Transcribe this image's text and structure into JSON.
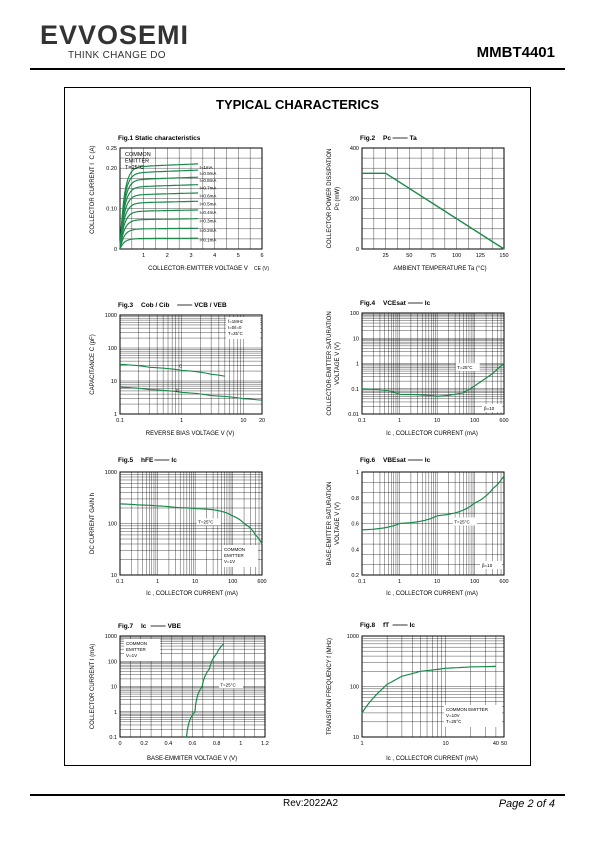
{
  "header": {
    "brand": "EVVOSEMI",
    "tagline": "THINK CHANGE DO",
    "part": "MMBT4401"
  },
  "page_title": "TYPICAL CHARACTERICS",
  "footer": {
    "revision": "Rev:2022A2",
    "page": "Page 2 of 4"
  },
  "colors": {
    "curve": "#1a8a4a",
    "grid": "#000000"
  },
  "chart_data": [
    {
      "id": "fig1",
      "type": "line",
      "title": "Fig.1  Static characteristics",
      "xlabel": "COLLECTOR-EMITTER VOLTAGE V",
      "xlabel_sub": "CE",
      "xlabel_unit": "(V)",
      "ylabel": "COLLECTOR CURRENT I",
      "ylabel_sub": "C",
      "ylabel_unit": "(A)",
      "xlim": [
        0,
        6
      ],
      "ylim": [
        0,
        0.25
      ],
      "xticks": [
        "1",
        "2",
        "3",
        "4",
        "5",
        "6"
      ],
      "yticks": [
        "0",
        "0.10",
        "0.20",
        "0.25"
      ],
      "annotation": [
        "COMMON",
        "EMITTER",
        "T=25°C"
      ],
      "series": [
        {
          "name": "I=1mA",
          "plateau": 0.205
        },
        {
          "name": "I=0.9mA",
          "plateau": 0.19
        },
        {
          "name": "I=0.8mA",
          "plateau": 0.173
        },
        {
          "name": "I=0.7mA",
          "plateau": 0.155
        },
        {
          "name": "I=0.6mA",
          "plateau": 0.135
        },
        {
          "name": "I=0.5mA",
          "plateau": 0.115
        },
        {
          "name": "I=0.4mA",
          "plateau": 0.094
        },
        {
          "name": "I=0.3mA",
          "plateau": 0.073
        },
        {
          "name": "I=0.2mA",
          "plateau": 0.05
        },
        {
          "name": "I=0.1mA",
          "plateau": 0.026
        }
      ]
    },
    {
      "id": "fig2",
      "type": "line",
      "title": "Fig.2",
      "title_sym": "Pc",
      "title_sym2": "Ta",
      "xlabel": "AMBIENT TEMPERATURE Ta (°C)",
      "ylabel": "COLLECTOR POWER DISSIPATION",
      "ylabel2": "Pc (mW)",
      "xlim": [
        0,
        150
      ],
      "ylim": [
        0,
        400
      ],
      "xticks": [
        "25",
        "50",
        "75",
        "100",
        "125",
        "150"
      ],
      "yticks": [
        "0",
        "200",
        "400"
      ],
      "x": [
        0,
        25,
        150
      ],
      "y": [
        300,
        300,
        0
      ]
    },
    {
      "id": "fig3",
      "type": "line",
      "title": "Fig.3",
      "title_sym": "Cob / Cib",
      "title_sym2": "VCB / VEB",
      "xlabel": "REVERSE BIAS VOLTAGE V (V)",
      "ylabel": "CAPACITANCE C (pF)",
      "log_x": true,
      "log_y": true,
      "xlim": [
        0.1,
        20
      ],
      "ylim": [
        1,
        1000
      ],
      "xticks": [
        "0.1",
        "1",
        "10",
        "20"
      ],
      "yticks": [
        "1",
        "10",
        "100",
        "1000"
      ],
      "annotation": [
        "f=1MHz",
        "I=0/I=0",
        "T=25°C"
      ],
      "series": [
        {
          "name": "C",
          "x": [
            0.1,
            0.3,
            1,
            3,
            5
          ],
          "y": [
            32,
            26,
            21,
            16,
            14
          ]
        },
        {
          "name": "C",
          "x": [
            0.1,
            0.3,
            1,
            3,
            10,
            20
          ],
          "y": [
            6.5,
            5.5,
            4.5,
            3.6,
            2.9,
            2.6
          ]
        }
      ]
    },
    {
      "id": "fig4",
      "type": "line",
      "title": "Fig.4",
      "title_sym": "VCEsat",
      "title_sym2": "Ic",
      "xlabel": "Ic , COLLECTOR CURRENT (mA)",
      "ylabel": "COLLECTOR-EMITTER SATURATION",
      "ylabel2": "VOLTAGE V (V)",
      "log_x": true,
      "log_y": true,
      "xlim": [
        0.1,
        600
      ],
      "ylim": [
        0.01,
        100
      ],
      "xticks": [
        "0.1",
        "1",
        "10",
        "100",
        "600"
      ],
      "yticks": [
        "0.01",
        "0.1",
        "1",
        "10",
        "100"
      ],
      "annotation": [
        "T=25°C",
        "β=10"
      ],
      "x": [
        0.1,
        1,
        10,
        50,
        100,
        300,
        600
      ],
      "y": [
        0.1,
        0.06,
        0.05,
        0.07,
        0.13,
        0.4,
        1.0
      ]
    },
    {
      "id": "fig5",
      "type": "line",
      "title": "Fig.5",
      "title_sym": "hFE",
      "title_sym2": "Ic",
      "xlabel": "Ic , COLLECTOR CURRENT (mA)",
      "ylabel": "DC CURRENT GAIN h",
      "log_x": true,
      "log_y": true,
      "xlim": [
        0.1,
        600
      ],
      "ylim": [
        10,
        1000
      ],
      "xticks": [
        "0.1",
        "1",
        "10",
        "100",
        "600"
      ],
      "yticks": [
        "10",
        "100",
        "1000"
      ],
      "annotation": [
        "T=25°C",
        "COMMON",
        "EMITTER",
        "V=1V"
      ],
      "x": [
        0.1,
        0.3,
        1,
        3,
        10,
        30,
        100,
        200,
        400,
        600
      ],
      "y": [
        240,
        230,
        220,
        205,
        195,
        185,
        140,
        100,
        60,
        40
      ]
    },
    {
      "id": "fig6",
      "type": "line",
      "title": "Fig.6",
      "title_sym": "VBEsat",
      "title_sym2": "Ic",
      "xlabel": "Ic , COLLECTOR CURRENT (mA)",
      "ylabel": "BASE-EMITTER SATURATION",
      "ylabel2": "VOLTAGE V (V)",
      "log_x": true,
      "xlim": [
        0.1,
        600
      ],
      "ylim": [
        0.2,
        1
      ],
      "xticks": [
        "0.1",
        "1",
        "10",
        "100",
        "600"
      ],
      "yticks": [
        "0.2",
        "0.4",
        "0.6",
        "0.8",
        "1"
      ],
      "annotation": [
        "T=25°C",
        "β=10"
      ],
      "x": [
        0.1,
        1,
        10,
        100,
        300,
        600
      ],
      "y": [
        0.55,
        0.6,
        0.66,
        0.76,
        0.87,
        0.97
      ]
    },
    {
      "id": "fig7",
      "type": "line",
      "title": "Fig.7",
      "title_sym": "Ic",
      "title_sym2": "VBE",
      "xlabel": "BASE-EMMITER VOLTAGE V (V)",
      "ylabel": "COLLECTOR CURRENT I (mA)",
      "log_y": true,
      "xlim": [
        0,
        1.2
      ],
      "ylim": [
        0.1,
        1000
      ],
      "xticks": [
        "0",
        "0.2",
        "0.4",
        "0.6",
        "0.8",
        "1",
        "1.2"
      ],
      "yticks": [
        "0.1",
        "1",
        "10",
        "100",
        "1000"
      ],
      "annotation": [
        "COMMON",
        "EMITTER",
        "V=1V",
        "T=25°C"
      ],
      "x": [
        0.55,
        0.62,
        0.68,
        0.74,
        0.8,
        0.86
      ],
      "y": [
        0.1,
        1,
        10,
        50,
        200,
        500
      ]
    },
    {
      "id": "fig8",
      "type": "line",
      "title": "Fig.8",
      "title_sym": "fT",
      "title_sym2": "Ic",
      "xlabel": "Ic , COLLECTOR CURRENT (mA)",
      "ylabel": "TRANSITION FREQUENCY f (MHz)",
      "log_x": true,
      "log_y": true,
      "xlim": [
        1,
        50
      ],
      "ylim": [
        10,
        1000
      ],
      "xticks": [
        "1",
        "10",
        "40",
        "50"
      ],
      "yticks": [
        "10",
        "100",
        "1000"
      ],
      "annotation": [
        "COMMON EMITTER",
        "V=10V",
        "T=25°C"
      ],
      "x": [
        1,
        1.5,
        2,
        3,
        5,
        10,
        20,
        40
      ],
      "y": [
        30,
        70,
        110,
        160,
        200,
        230,
        245,
        250
      ]
    }
  ]
}
